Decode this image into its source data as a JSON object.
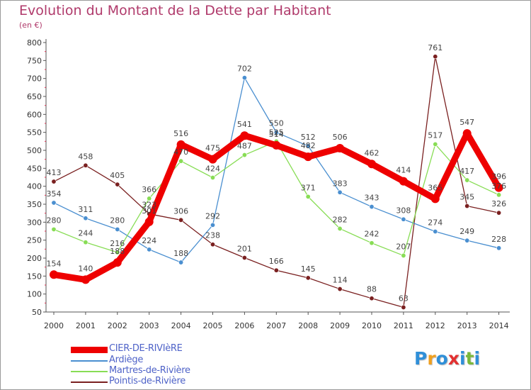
{
  "title": "Evolution du Montant de la Dette par Habitant",
  "subtitle": "(en €)",
  "logo": {
    "text": "Proxiti",
    "letters": [
      {
        "ch": "P",
        "color": "#2f8fd8"
      },
      {
        "ch": "r",
        "color": "#f0a020"
      },
      {
        "ch": "o",
        "color": "#2f8fd8"
      },
      {
        "ch": "x",
        "color": "#e23030"
      },
      {
        "ch": "i",
        "color": "#2f8fd8"
      },
      {
        "ch": "t",
        "color": "#7ab83a"
      },
      {
        "ch": "i",
        "color": "#2f8fd8"
      }
    ]
  },
  "chart_data": {
    "type": "line",
    "title": "Evolution du Montant de la Dette par Habitant",
    "subtitle": "(en €)",
    "x": [
      "2000",
      "2001",
      "2002",
      "2003",
      "2004",
      "2005",
      "2006",
      "2007",
      "2008",
      "2009",
      "2010",
      "2011",
      "2012",
      "2013",
      "2014"
    ],
    "ylim": [
      50,
      800
    ],
    "yticks": [
      50,
      100,
      150,
      200,
      250,
      300,
      350,
      400,
      450,
      500,
      550,
      600,
      650,
      700,
      750,
      800
    ],
    "grid": false,
    "legend_position": "bottom-left",
    "series": [
      {
        "name": "CIER-DE-RIVIèRE",
        "color": "#ee0000",
        "width": 9,
        "marker": 6,
        "values": [
          154,
          140,
          188,
          301,
          516,
          475,
          541,
          514,
          482,
          506,
          462,
          414,
          365,
          547,
          396
        ]
      },
      {
        "name": "Ardiège",
        "color": "#4a8fd0",
        "width": 1.3,
        "marker": 3.2,
        "values": [
          354,
          311,
          280,
          224,
          188,
          292,
          702,
          550,
          512,
          383,
          343,
          308,
          274,
          249,
          228
        ]
      },
      {
        "name": "Martres-de-Rivière",
        "color": "#88dd55",
        "width": 1.3,
        "marker": 3.2,
        "values": [
          280,
          244,
          216,
          366,
          470,
          424,
          487,
          525,
          371,
          282,
          242,
          207,
          517,
          417,
          376
        ]
      },
      {
        "name": "Pointis-de-Rivière",
        "color": "#7a2020",
        "width": 1.3,
        "marker": 3.2,
        "values": [
          413,
          458,
          405,
          323,
          306,
          238,
          201,
          166,
          145,
          114,
          88,
          63,
          761,
          345,
          326
        ]
      }
    ]
  }
}
